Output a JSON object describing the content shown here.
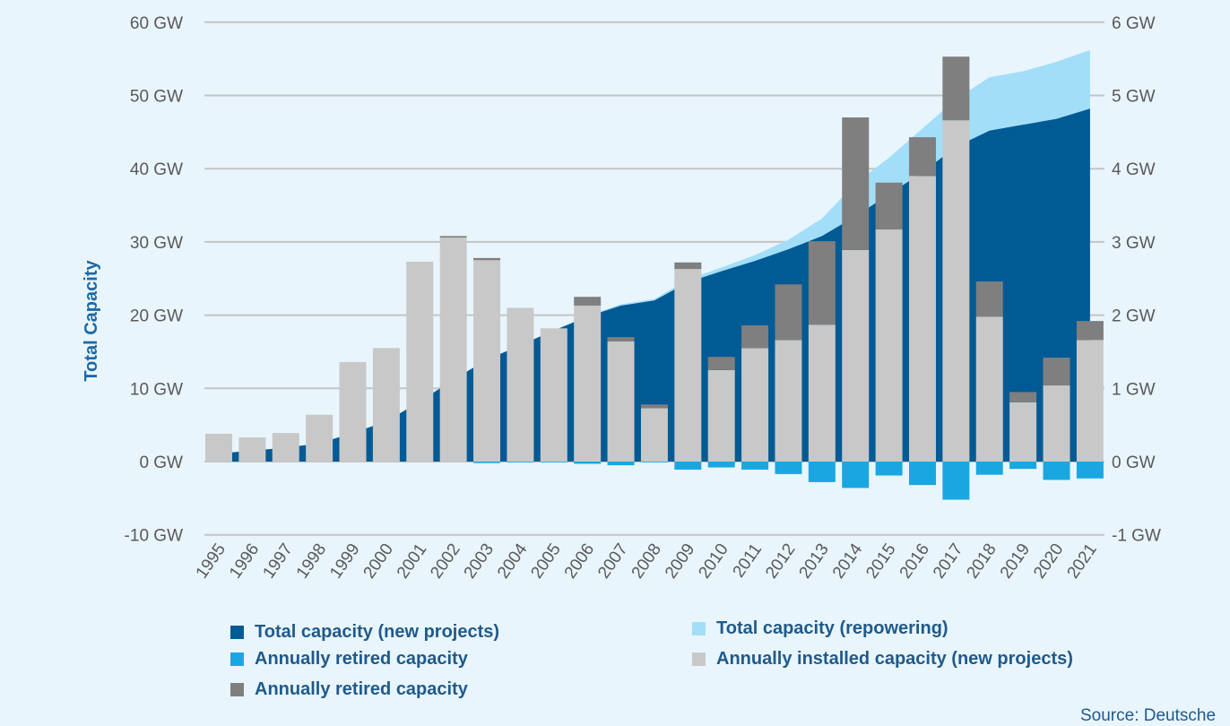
{
  "chart_data": {
    "type": "bar",
    "title": "",
    "ylabel": "Total Capacity",
    "left_axis": {
      "ticks": [
        "60 GW",
        "50 GW",
        "40 GW",
        "30 GW",
        "20 GW",
        "10 GW",
        "0 GW",
        "-10 GW"
      ],
      "ylim": [
        -10,
        60
      ]
    },
    "right_axis": {
      "ticks": [
        "6 GW",
        "5 GW",
        "4 GW",
        "3 GW",
        "2 GW",
        "1 GW",
        "0 GW",
        "-1 GW"
      ],
      "ylim": [
        -1,
        6
      ]
    },
    "grid": true,
    "categories": [
      "1995",
      "1996",
      "1997",
      "1998",
      "1999",
      "2000",
      "2001",
      "2002",
      "2003",
      "2004",
      "2005",
      "2006",
      "2007",
      "2008",
      "2009",
      "2010",
      "2011",
      "2012",
      "2013",
      "2014",
      "2015",
      "2016",
      "2017",
      "2018",
      "2019",
      "2020",
      "2021"
    ],
    "series": [
      {
        "name": "Total capacity (new projects)",
        "kind": "area",
        "axis": "left",
        "color": "#005a94",
        "values": [
          1.1,
          1.5,
          1.9,
          2.5,
          3.9,
          5.5,
          8.2,
          11.2,
          13.9,
          15.9,
          17.9,
          19.8,
          21.3,
          22.0,
          24.5,
          26.0,
          27.4,
          29.0,
          30.8,
          33.5,
          36.5,
          39.5,
          43.0,
          45.2,
          46.0,
          46.8,
          48.2
        ]
      },
      {
        "name": "Total capacity (repowering)",
        "kind": "area",
        "axis": "left",
        "color": "#a3def9",
        "values": [
          1.1,
          1.5,
          1.9,
          2.5,
          3.9,
          5.5,
          8.2,
          11.2,
          13.9,
          15.9,
          17.9,
          19.9,
          21.5,
          22.2,
          24.9,
          26.5,
          28.2,
          30.3,
          33.2,
          38.0,
          41.5,
          45.5,
          49.5,
          52.5,
          53.3,
          54.6,
          56.2
        ]
      },
      {
        "name": "Annually retired capacity",
        "kind": "bar",
        "axis": "right",
        "color": "#1aa7e1",
        "values": [
          0,
          0,
          0,
          0,
          0,
          0,
          0,
          0,
          -0.02,
          -0.01,
          -0.01,
          -0.03,
          -0.05,
          -0.01,
          -0.11,
          -0.08,
          -0.11,
          -0.17,
          -0.28,
          -0.36,
          -0.19,
          -0.32,
          -0.52,
          -0.18,
          -0.1,
          -0.25,
          -0.23
        ]
      },
      {
        "name": "Annually installed capacity (new projects)",
        "kind": "bar",
        "axis": "right",
        "color": "#c8c8c8",
        "values": [
          0.38,
          0.33,
          0.39,
          0.64,
          1.36,
          1.55,
          2.73,
          3.06,
          2.75,
          2.1,
          1.82,
          2.13,
          1.64,
          0.73,
          2.63,
          1.25,
          1.55,
          1.66,
          1.87,
          2.89,
          3.17,
          3.9,
          4.66,
          1.98,
          0.81,
          1.04,
          1.66
        ]
      },
      {
        "name": "Annually retired capacity",
        "kind": "bar-stacked",
        "axis": "right",
        "color": "#7f7f7f",
        "values": [
          0,
          0,
          0,
          0,
          0,
          0,
          0,
          0.02,
          0.03,
          0,
          0,
          0.12,
          0.06,
          0.05,
          0.09,
          0.18,
          0.31,
          0.76,
          1.14,
          1.81,
          0.64,
          0.53,
          0.87,
          0.48,
          0.14,
          0.38,
          0.26
        ]
      }
    ],
    "legend_position": "bottom",
    "source": "Source: Deutsche"
  }
}
